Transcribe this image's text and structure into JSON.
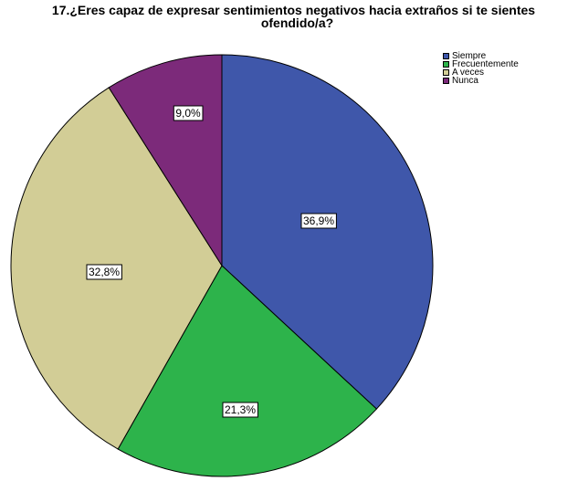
{
  "chart_data": {
    "type": "pie",
    "title_line1": "17.¿Eres capaz de expresar sentimientos negativos hacia extraños si te sientes",
    "title_line2": "ofendido/a?",
    "slices": [
      {
        "name": "Siempre",
        "value": 36.9,
        "label": "36,9%",
        "color": "#3f57aa"
      },
      {
        "name": "Frecuentemente",
        "value": 21.3,
        "label": "21,3%",
        "color": "#2db34b"
      },
      {
        "name": "A veces",
        "value": 32.8,
        "label": "32,8%",
        "color": "#d2cd96"
      },
      {
        "name": "Nunca",
        "value": 9.0,
        "label": "9,0%",
        "color": "#7c2a7a"
      }
    ],
    "start_angle": "12 o'clock",
    "direction": "clockwise",
    "legend": "top-right"
  }
}
